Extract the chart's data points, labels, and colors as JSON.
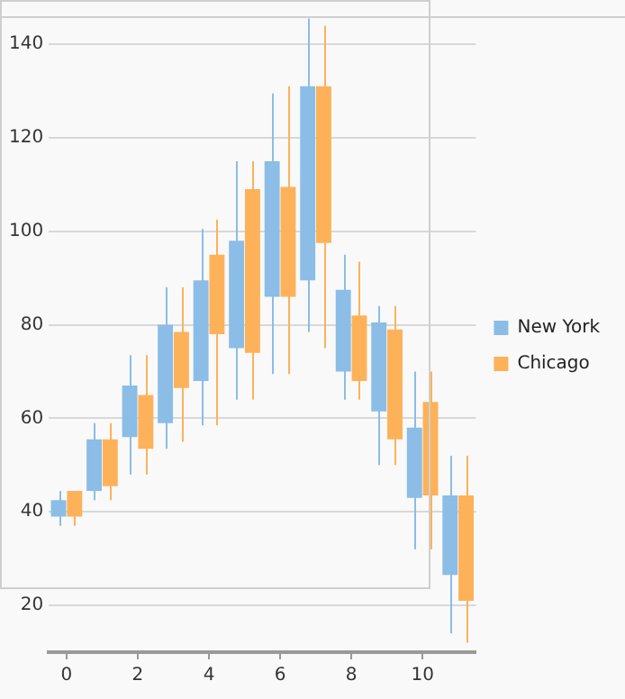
{
  "chart_data": {
    "type": "candlestick",
    "categories": [
      "0",
      null,
      "2",
      null,
      "4",
      null,
      "6",
      null,
      "8",
      null,
      "10",
      null
    ],
    "series": [
      {
        "name": "New York",
        "color": "#8bbde6",
        "ohlc": [
          [
            39,
            44.5,
            37,
            42.5
          ],
          [
            44.5,
            59,
            42.5,
            55.5
          ],
          [
            56,
            73.5,
            48,
            67
          ],
          [
            59,
            88,
            53.5,
            80
          ],
          [
            68,
            100.5,
            58.5,
            89.5
          ],
          [
            75,
            115,
            64,
            98
          ],
          [
            86,
            129.5,
            69.5,
            115
          ],
          [
            89.5,
            145.5,
            78.5,
            131
          ],
          [
            70,
            95,
            64,
            87.5
          ],
          [
            61.5,
            84,
            50,
            80.5
          ],
          [
            43,
            70,
            32,
            58
          ],
          [
            26.5,
            52,
            14,
            43.5
          ]
        ]
      },
      {
        "name": "Chicago",
        "color": "#fdb25a",
        "ohlc": [
          [
            39,
            44.5,
            37,
            44.5
          ],
          [
            45.5,
            59,
            42.5,
            55.5
          ],
          [
            53.5,
            73.5,
            48,
            65
          ],
          [
            66.5,
            88,
            55,
            78.5
          ],
          [
            78,
            102.5,
            58.5,
            95
          ],
          [
            74,
            115,
            64,
            109
          ],
          [
            86,
            131,
            69.5,
            109.5
          ],
          [
            97.5,
            144,
            75,
            131
          ],
          [
            68,
            93.5,
            64,
            82
          ],
          [
            55.5,
            84,
            50,
            79
          ],
          [
            43.5,
            70,
            32,
            63.5
          ],
          [
            21,
            52,
            12,
            43.5
          ]
        ]
      }
    ],
    "ylim": [
      10,
      146
    ],
    "yticks": [
      20,
      40,
      60,
      80,
      100,
      120,
      140
    ],
    "grid": "y",
    "legend": "right"
  }
}
